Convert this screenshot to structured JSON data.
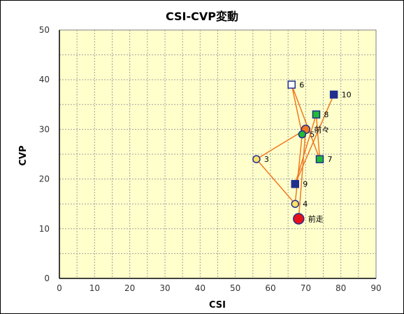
{
  "chart_data": {
    "type": "scatter",
    "title": "CSI-CVP変動",
    "xlabel": "CSI",
    "ylabel": "CVP",
    "xlim": [
      0,
      90
    ],
    "ylim": [
      0,
      50
    ],
    "x_ticks": [
      "0",
      "10",
      "20",
      "30",
      "40",
      "50",
      "60",
      "70",
      "80",
      "90"
    ],
    "y_ticks": [
      "0",
      "10",
      "20",
      "30",
      "40",
      "50"
    ],
    "grid": true,
    "colors": {
      "plot_background": "#FFFFCC",
      "grid": "#A0A0A0",
      "line": "#F07820",
      "navy": "#1F2F8F",
      "green": "#22BB33",
      "yellow": "#FFE066",
      "orange": "#F07820",
      "red": "#E8101A",
      "white": "#FFFFFF"
    },
    "path_order": [
      "10",
      "9",
      "8",
      "7",
      "6",
      "5",
      "4",
      "3",
      "前々",
      "前走"
    ],
    "points": [
      {
        "label": "前走",
        "x": 68,
        "y": 12,
        "shape": "circle",
        "fill": "red",
        "stroke": "navy",
        "size": "large"
      },
      {
        "label": "前々",
        "x": 70,
        "y": 30,
        "shape": "circle",
        "fill": "orange",
        "stroke": "navy",
        "size": "medium"
      },
      {
        "label": "3",
        "x": 56,
        "y": 24,
        "shape": "circle",
        "fill": "yellow",
        "stroke": "navy",
        "size": "small"
      },
      {
        "label": "4",
        "x": 67,
        "y": 15,
        "shape": "circle",
        "fill": "yellow",
        "stroke": "navy",
        "size": "small"
      },
      {
        "label": "5",
        "x": 69,
        "y": 29,
        "shape": "circle",
        "fill": "green",
        "stroke": "navy",
        "size": "small"
      },
      {
        "label": "6",
        "x": 66,
        "y": 39,
        "shape": "square",
        "fill": "white",
        "stroke": "navy",
        "size": "small"
      },
      {
        "label": "7",
        "x": 74,
        "y": 24,
        "shape": "square",
        "fill": "green",
        "stroke": "navy",
        "size": "small"
      },
      {
        "label": "8",
        "x": 73,
        "y": 33,
        "shape": "square",
        "fill": "green",
        "stroke": "navy",
        "size": "small"
      },
      {
        "label": "9",
        "x": 67,
        "y": 19,
        "shape": "square",
        "fill": "navy",
        "stroke": "navy",
        "size": "small"
      },
      {
        "label": "10",
        "x": 78,
        "y": 37,
        "shape": "square",
        "fill": "navy",
        "stroke": "navy",
        "size": "small"
      }
    ]
  }
}
